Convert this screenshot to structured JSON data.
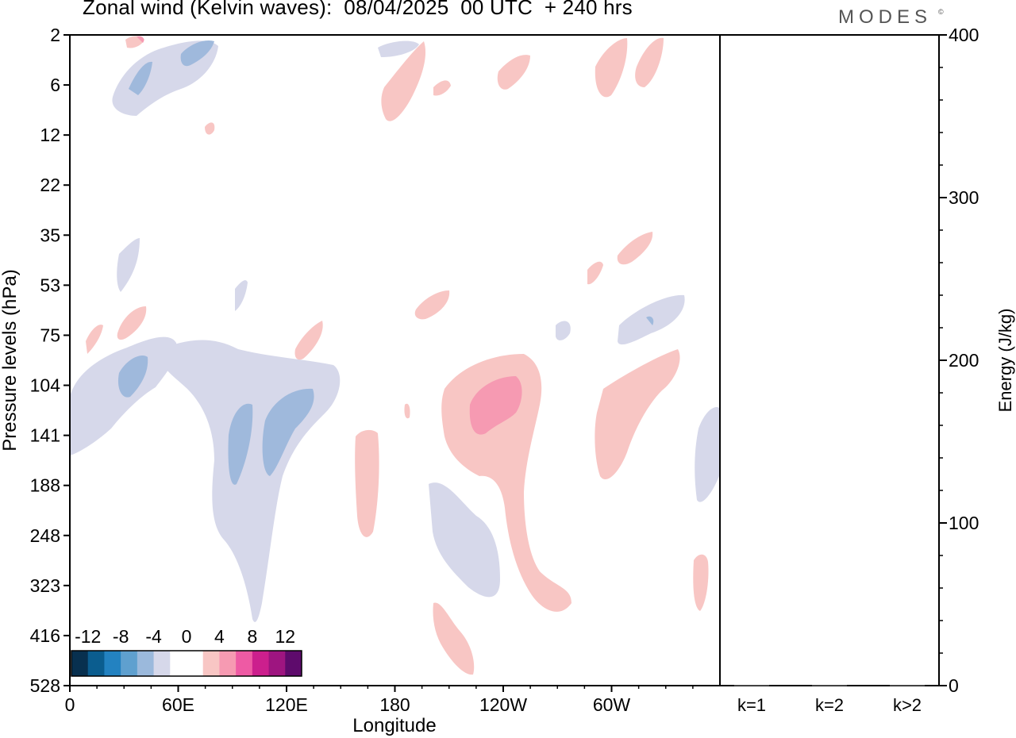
{
  "header": {
    "title": "Zonal wind (Kelvin waves):  08/04/2025  00 UTC  + 240 hrs",
    "brand": "MODES",
    "brand_mark": "©"
  },
  "colors": {
    "neg_light": "#d6d8ea",
    "neg_mid": "#9fb9dc",
    "neg_dark": "#6e9ccc",
    "pos_light": "#f8c6c4",
    "pos_mid": "#f69ab2",
    "frame": "#000000",
    "background": "#ffffff"
  },
  "chart_data": [
    {
      "type": "heatmap",
      "title": "Zonal wind (Kelvin waves):  08/04/2025  00 UTC  + 240 hrs",
      "xlabel": "Longitude",
      "ylabel": "Pressure levels (hPa)",
      "x_ticks": [
        "0",
        "60E",
        "120E",
        "180",
        "120W",
        "60W"
      ],
      "x_tick_values": [
        0,
        60,
        120,
        180,
        240,
        300
      ],
      "xlim": [
        0,
        360
      ],
      "y_ticks": [
        "2",
        "6",
        "12",
        "22",
        "35",
        "53",
        "75",
        "104",
        "141",
        "188",
        "248",
        "323",
        "416",
        "528"
      ],
      "y_scale": "pressure levels (index axis, top = 2 hPa)",
      "colorbar": {
        "labels": [
          "-12",
          "-8",
          "-4",
          "0",
          "4",
          "8",
          "12"
        ],
        "colors": [
          "#08304f",
          "#0b5d8f",
          "#2382c1",
          "#5fa0cf",
          "#9bb9dc",
          "#d6d8ea",
          "#ffffff",
          "#ffffff",
          "#f8c6c4",
          "#f69ab2",
          "#ee5aa4",
          "#cc1f8d",
          "#9e1580",
          "#5e0b6c"
        ],
        "placement": "bottom-left inside plot"
      },
      "regions": [
        {
          "sign": "negative",
          "level": 1,
          "lon": [
            22,
            80
          ],
          "p": "2-6"
        },
        {
          "sign": "negative",
          "level": 2,
          "lon": [
            35,
            45
          ],
          "p": "6"
        },
        {
          "sign": "negative",
          "level": 2,
          "lon": [
            62,
            82
          ],
          "p": "2-6"
        },
        {
          "sign": "negative",
          "level": 1,
          "lon": [
            0,
            150
          ],
          "p": "75-141"
        },
        {
          "sign": "negative",
          "level": 2,
          "lon": [
            26,
            42
          ],
          "p": "104-141"
        },
        {
          "sign": "negative",
          "level": 1,
          "lon": [
            78,
            150
          ],
          "p": "104-323"
        },
        {
          "sign": "negative",
          "level": 2,
          "lon": [
            87,
            102
          ],
          "p": "141-188"
        },
        {
          "sign": "negative",
          "level": 2,
          "lon": [
            103,
            135
          ],
          "p": "104-188"
        },
        {
          "sign": "negative",
          "level": 1,
          "lon": [
            197,
            247
          ],
          "p": "188-323"
        },
        {
          "sign": "negative",
          "level": 1,
          "lon": [
            305,
            340
          ],
          "p": "53-104"
        },
        {
          "sign": "negative",
          "level": 1,
          "lon": [
            350,
            360
          ],
          "p": "141-188"
        },
        {
          "sign": "positive",
          "level": 1,
          "lon": [
            205,
            285
          ],
          "p": "104-323"
        },
        {
          "sign": "positive",
          "level": 2,
          "lon": [
            222,
            250
          ],
          "p": "104-141"
        },
        {
          "sign": "positive",
          "level": 1,
          "lon": [
            160,
            172
          ],
          "p": "141-248"
        },
        {
          "sign": "positive",
          "level": 1,
          "lon": [
            202,
            225
          ],
          "p": "323-528"
        },
        {
          "sign": "positive",
          "level": 1,
          "lon": [
            285,
            325
          ],
          "p": "104-188"
        },
        {
          "sign": "positive",
          "level": 1,
          "lon": [
            290,
            325
          ],
          "p": "2-6"
        },
        {
          "sign": "positive",
          "level": 1,
          "lon": [
            175,
            195
          ],
          "p": "2-12"
        },
        {
          "sign": "positive",
          "level": 1,
          "lon": [
            240,
            255
          ],
          "p": "2-6"
        },
        {
          "sign": "positive",
          "level": 1,
          "lon": [
            25,
            40
          ],
          "p": "53-75"
        },
        {
          "sign": "positive",
          "level": 1,
          "lon": [
            125,
            140
          ],
          "p": "75-104"
        },
        {
          "sign": "positive",
          "level": 1,
          "lon": [
            295,
            320
          ],
          "p": "35-53"
        },
        {
          "sign": "positive",
          "level": 1,
          "lon": [
            345,
            352
          ],
          "p": "248-323"
        }
      ]
    },
    {
      "type": "bar",
      "categories": [
        "k=1",
        "k=2",
        "k>2"
      ],
      "values": [
        0,
        0,
        0
      ],
      "ylabel": "Energy (J/kg)",
      "ylim": [
        0,
        400
      ],
      "y_ticks": [
        "0",
        "100",
        "200",
        "300",
        "400"
      ]
    }
  ]
}
